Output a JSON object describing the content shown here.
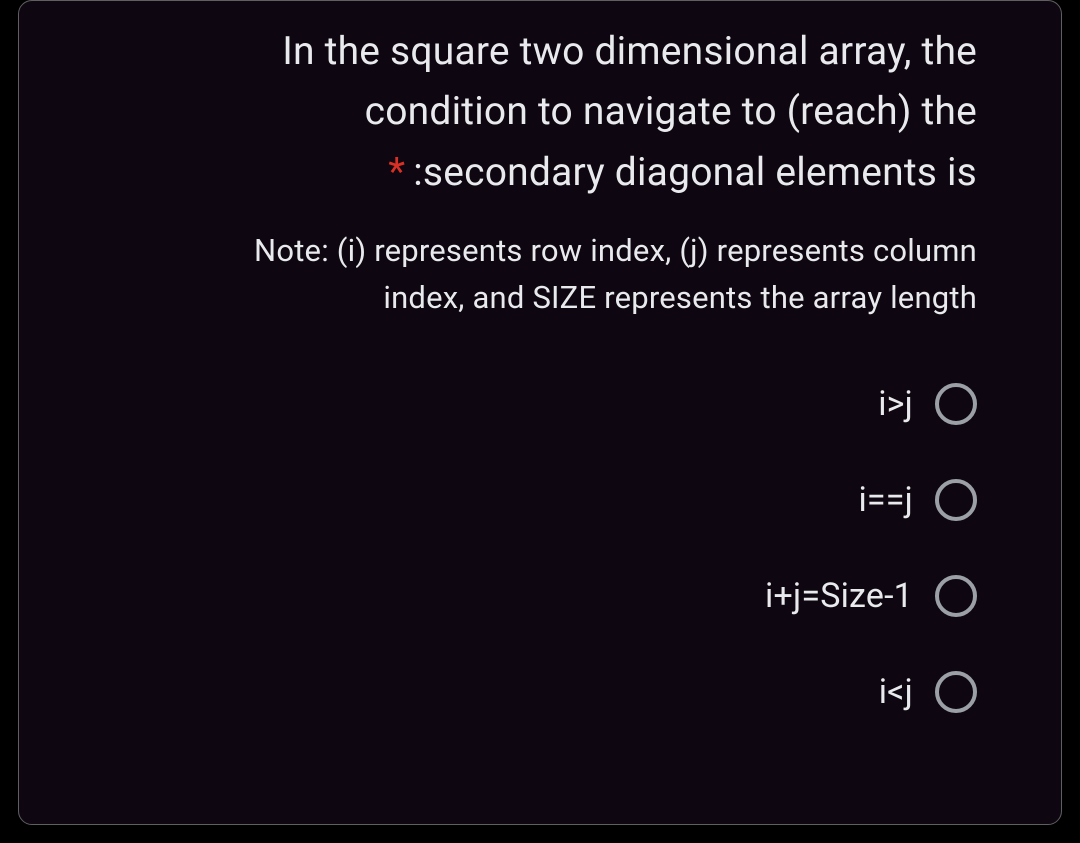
{
  "card": {
    "background_color": "#0e0610",
    "border_color": "#5f5f5f",
    "border_radius": 14
  },
  "question": {
    "line1": "In the square two dimensional array, the",
    "line2": "condition to navigate to (reach) the",
    "line3_prefix": "*",
    "line3": ":secondary diagonal elements is",
    "text_color": "#e8eaed",
    "required_color": "#d93025",
    "font_size": 39
  },
  "note": {
    "line1": "Note: (i) represents row index, (j) represents column",
    "line2": "index, and SIZE represents the array length",
    "text_color": "#e8eaed",
    "font_size": 31
  },
  "options": {
    "items": [
      {
        "label": "i>j"
      },
      {
        "label": "i==j"
      },
      {
        "label": "i+j=Size-1"
      },
      {
        "label": "i<j"
      }
    ],
    "label_color": "#e8eaed",
    "label_font_size": 34,
    "radio_border_color": "#9aa0a6",
    "radio_size": 42
  },
  "page": {
    "background_color": "#000000"
  }
}
